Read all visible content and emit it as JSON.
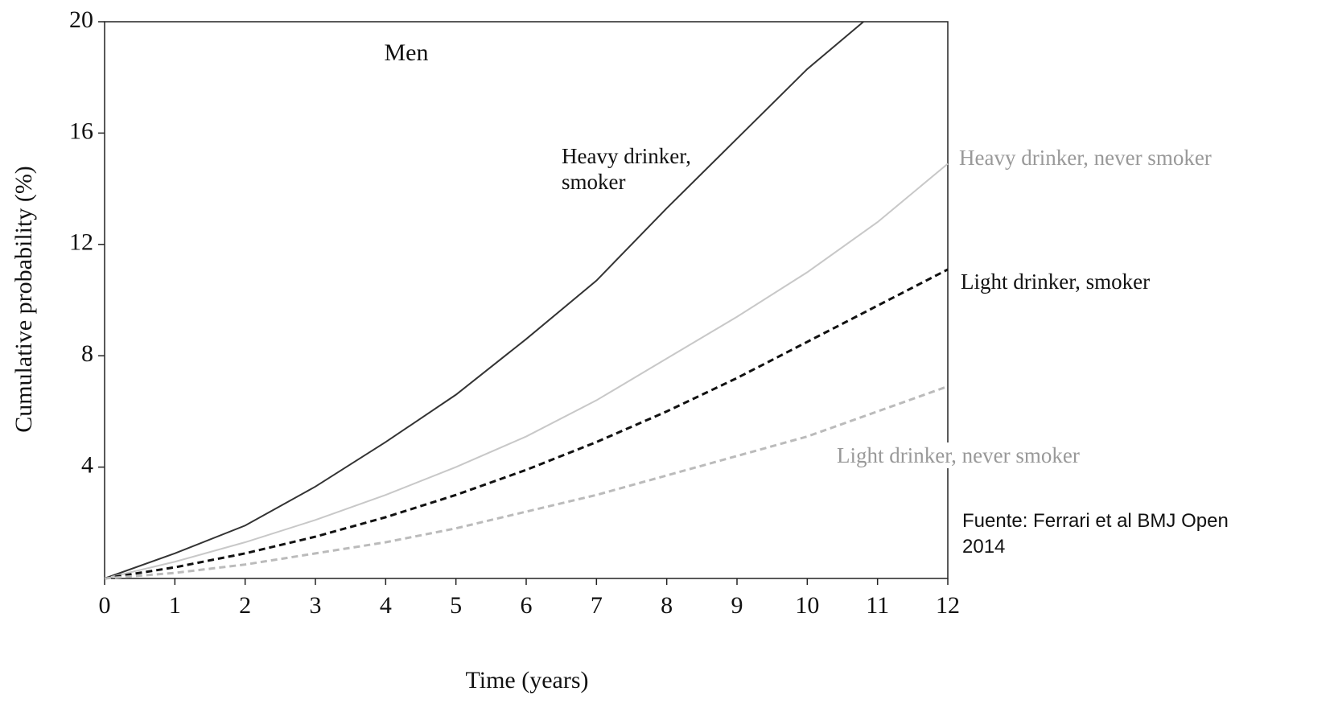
{
  "chart_data": {
    "type": "line",
    "title": "Men",
    "x_label": "Time (years)",
    "y_label": "Cumulative probability (%)",
    "source": "Fuente: Ferrari et al BMJ Open 2014",
    "xlim": [
      0,
      12
    ],
    "xticks": [
      0,
      1,
      2,
      3,
      4,
      5,
      6,
      7,
      8,
      9,
      10,
      11,
      12
    ],
    "ylim": [
      0,
      20
    ],
    "yticks": [
      4,
      8,
      12,
      16,
      20
    ],
    "series": [
      {
        "name": "Heavy drinker, smoker",
        "color": "#333333",
        "label_color": "#111111",
        "dash": false,
        "x": [
          0,
          1,
          2,
          3,
          4,
          5,
          6,
          7,
          8,
          9,
          10,
          10.8
        ],
        "values": [
          0,
          0.9,
          1.9,
          3.3,
          4.9,
          6.6,
          8.6,
          10.7,
          13.3,
          15.8,
          18.3,
          20
        ]
      },
      {
        "name": "Heavy drinker, never smoker",
        "color": "#c8c8c8",
        "label_color": "#999999",
        "dash": false,
        "x": [
          0,
          1,
          2,
          3,
          4,
          5,
          6,
          7,
          8,
          9,
          10,
          11,
          12
        ],
        "values": [
          0,
          0.6,
          1.3,
          2.1,
          3.0,
          4.0,
          5.1,
          6.4,
          7.9,
          9.4,
          11.0,
          12.8,
          14.9
        ]
      },
      {
        "name": "Light drinker, smoker",
        "color": "#111111",
        "label_color": "#111111",
        "dash": true,
        "x": [
          0,
          1,
          2,
          3,
          4,
          5,
          6,
          7,
          8,
          9,
          10,
          11,
          12
        ],
        "values": [
          0,
          0.4,
          0.9,
          1.5,
          2.2,
          3.0,
          3.9,
          4.9,
          6.0,
          7.2,
          8.5,
          9.8,
          11.1
        ]
      },
      {
        "name": "Light drinker, never smoker",
        "color": "#bbbbbb",
        "label_color": "#999999",
        "dash": true,
        "x": [
          0,
          1,
          2,
          3,
          4,
          5,
          6,
          7,
          8,
          9,
          10,
          11,
          12
        ],
        "values": [
          0,
          0.2,
          0.5,
          0.9,
          1.3,
          1.8,
          2.4,
          3.0,
          3.7,
          4.4,
          5.1,
          6.0,
          6.9
        ]
      }
    ]
  }
}
